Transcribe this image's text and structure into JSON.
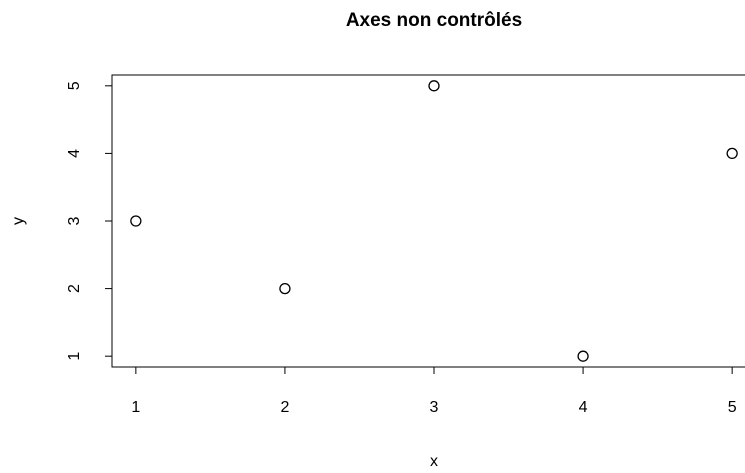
{
  "chart_data": {
    "type": "scatter",
    "title": "Axes non contrôlés",
    "x_label": "x",
    "y_label": "y",
    "x": [
      1,
      2,
      3,
      4,
      5
    ],
    "values": [
      3,
      2,
      5,
      1,
      4
    ],
    "color": "#000000",
    "xlim": [
      0.84,
      5.16
    ],
    "ylim": [
      0.84,
      5.16
    ],
    "xticks": [
      1,
      2,
      3,
      4,
      5
    ],
    "yticks": [
      1,
      2,
      3,
      4,
      5
    ],
    "grid": false
  }
}
